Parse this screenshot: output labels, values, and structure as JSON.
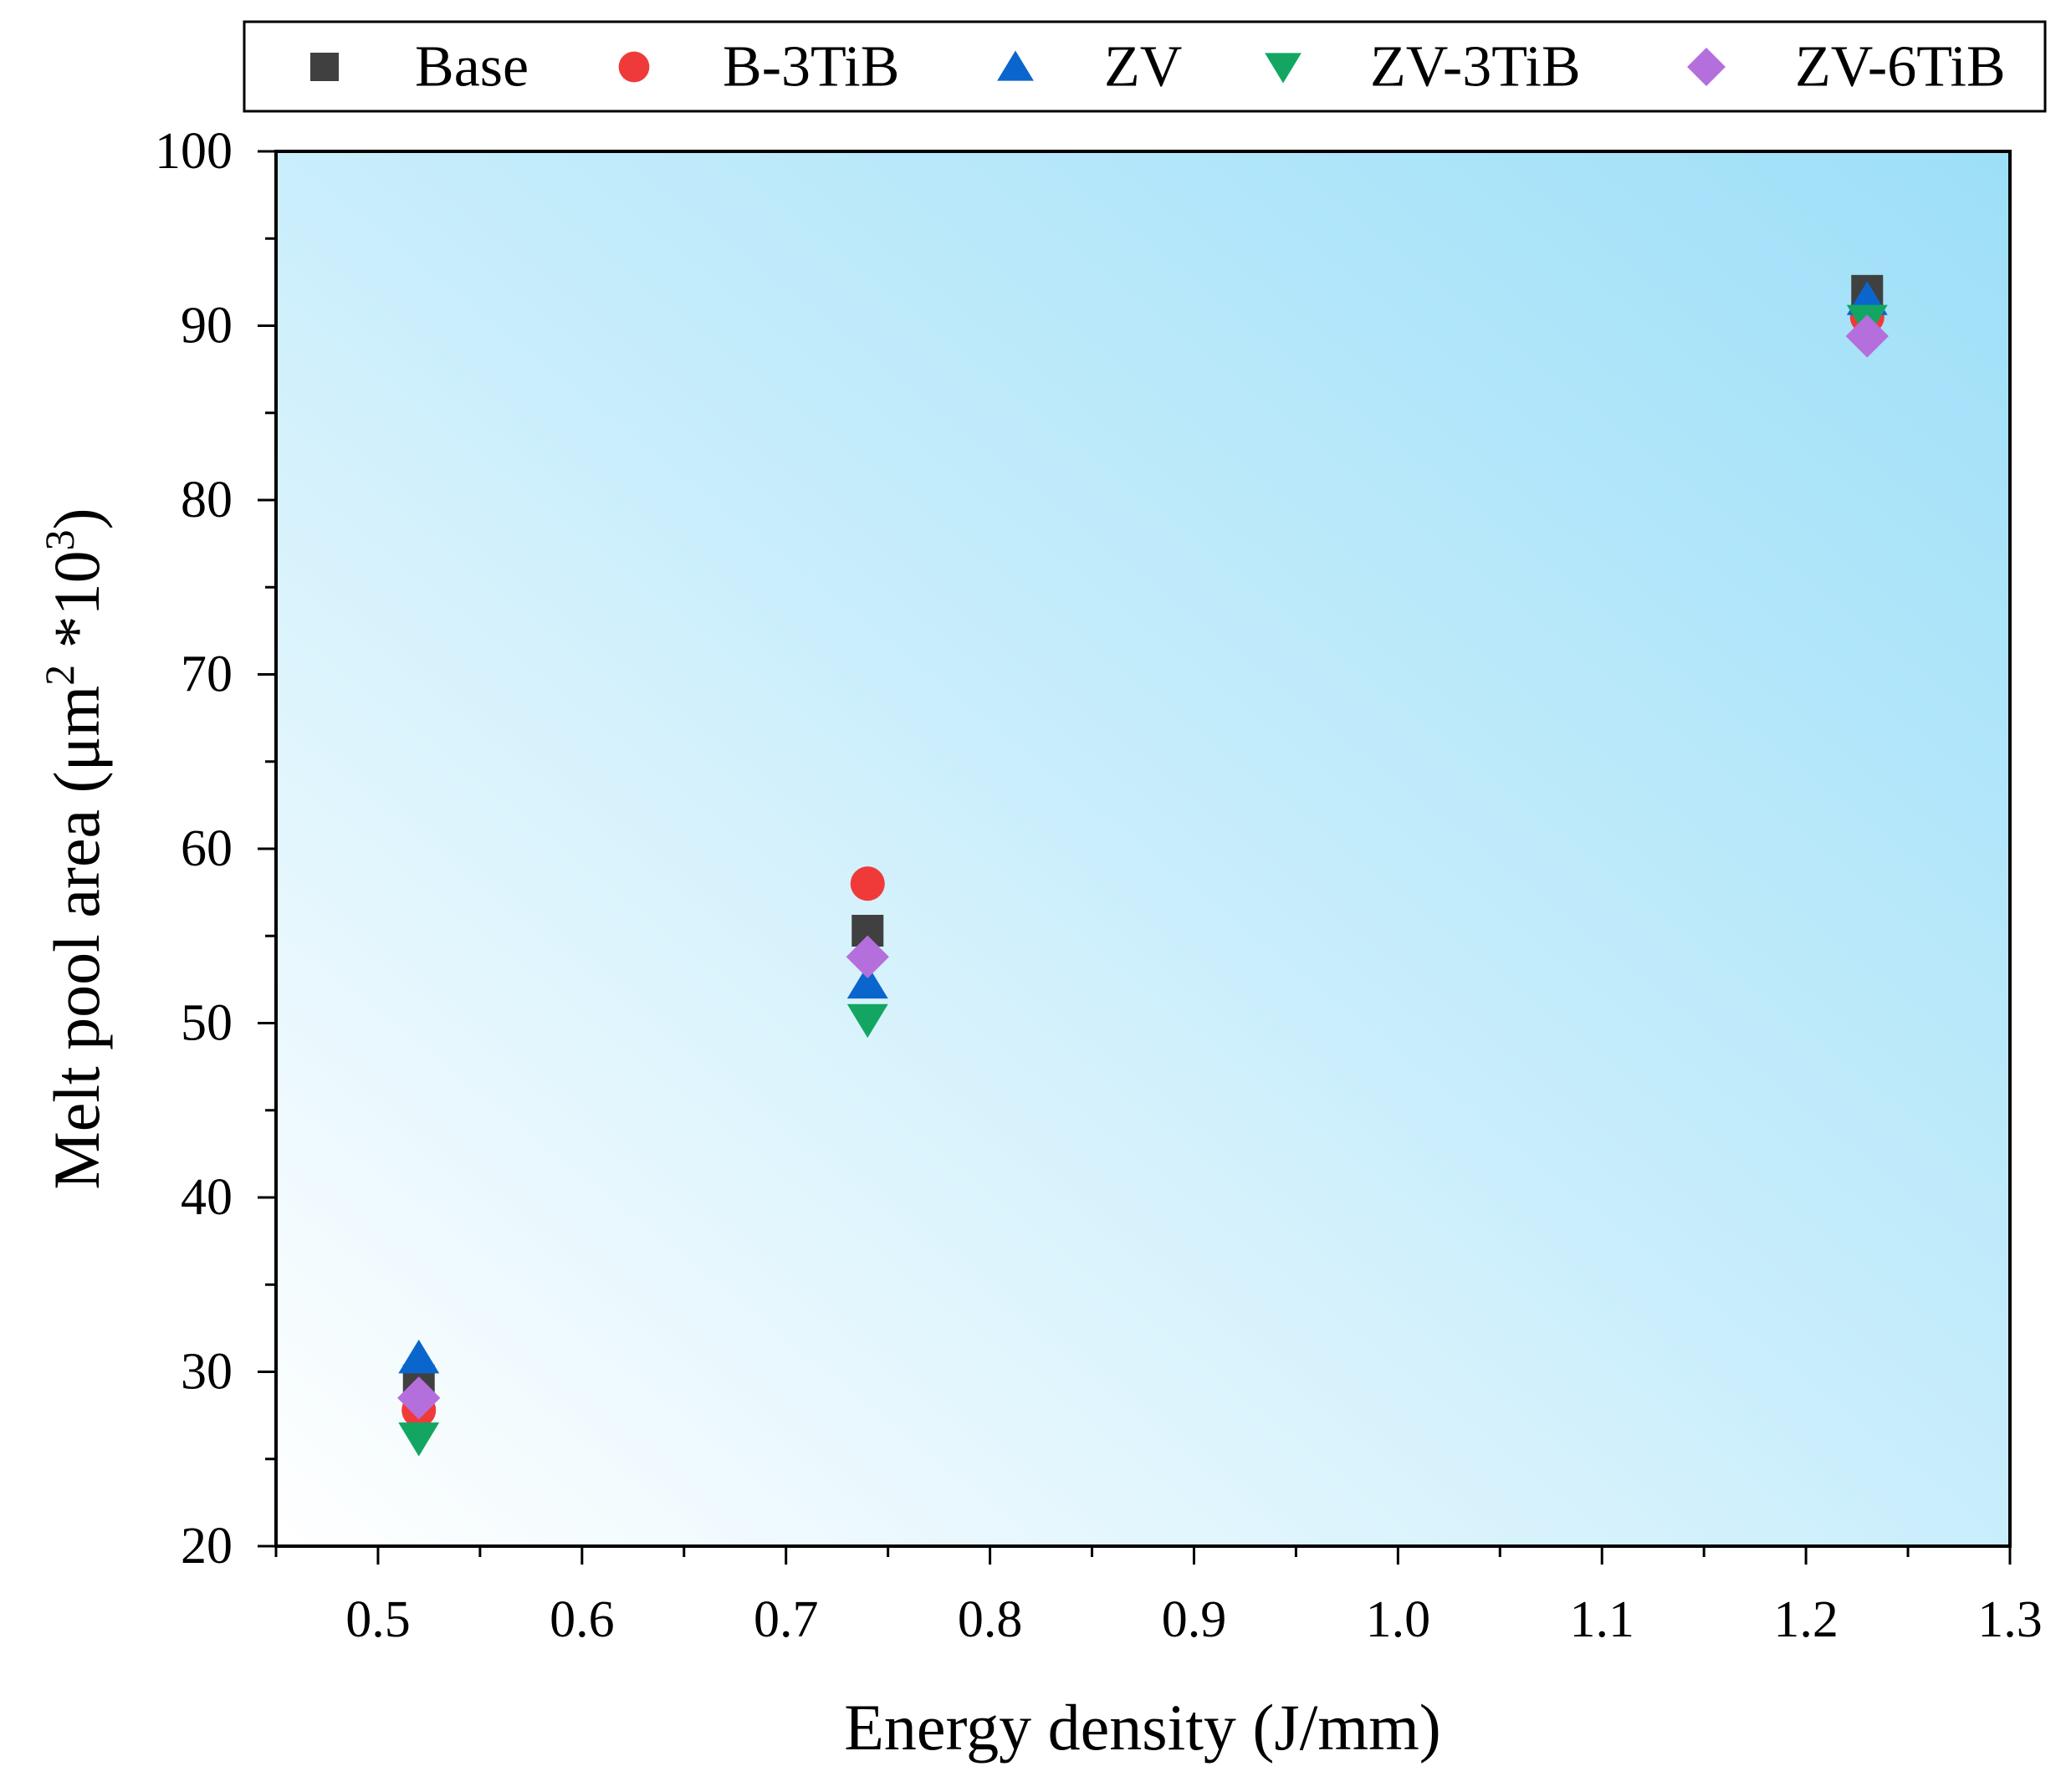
{
  "chart_data": {
    "type": "scatter",
    "title": "",
    "xlabel": "Energy density (J/mm)",
    "ylabel": {
      "prefix": "Melt pool area (μm",
      "sup1": "2",
      "middle": " *10",
      "sup2": "3",
      "suffix": ")"
    },
    "xlim": [
      0.45,
      1.3
    ],
    "ylim": [
      20,
      100
    ],
    "xticks": [
      0.5,
      0.6,
      0.7,
      0.8,
      0.9,
      1.0,
      1.1,
      1.2,
      1.3
    ],
    "xtick_labels": [
      "0.5",
      "0.6",
      "0.7",
      "0.8",
      "0.9",
      "1.0",
      "1.1",
      "1.2",
      "1.3"
    ],
    "yticks": [
      20,
      30,
      40,
      50,
      60,
      70,
      80,
      90,
      100
    ],
    "ytick_labels": [
      "20",
      "30",
      "40",
      "50",
      "60",
      "70",
      "80",
      "90",
      "100"
    ],
    "legend_position": "top",
    "background": "gradient light-blue",
    "series": [
      {
        "name": "Base",
        "marker": "square",
        "color": "#404040",
        "x": [
          0.52,
          0.74,
          1.23
        ],
        "y": [
          29.5,
          55.3,
          92.0
        ]
      },
      {
        "name": "B-3TiB",
        "marker": "circle",
        "color": "#f03a3a",
        "x": [
          0.52,
          0.74,
          1.23
        ],
        "y": [
          27.8,
          58.0,
          90.5
        ]
      },
      {
        "name": "ZV",
        "marker": "triangle-up",
        "color": "#0a66cc",
        "x": [
          0.52,
          0.74,
          1.23
        ],
        "y": [
          30.8,
          52.3,
          91.5
        ]
      },
      {
        "name": "ZV-3TiB",
        "marker": "triangle-down",
        "color": "#13a662",
        "x": [
          0.52,
          0.74,
          1.23
        ],
        "y": [
          26.2,
          50.2,
          90.3
        ]
      },
      {
        "name": "ZV-6TiB",
        "marker": "diamond",
        "color": "#b56fdc",
        "x": [
          0.52,
          0.74,
          1.23
        ],
        "y": [
          28.5,
          53.8,
          89.4
        ]
      }
    ]
  }
}
